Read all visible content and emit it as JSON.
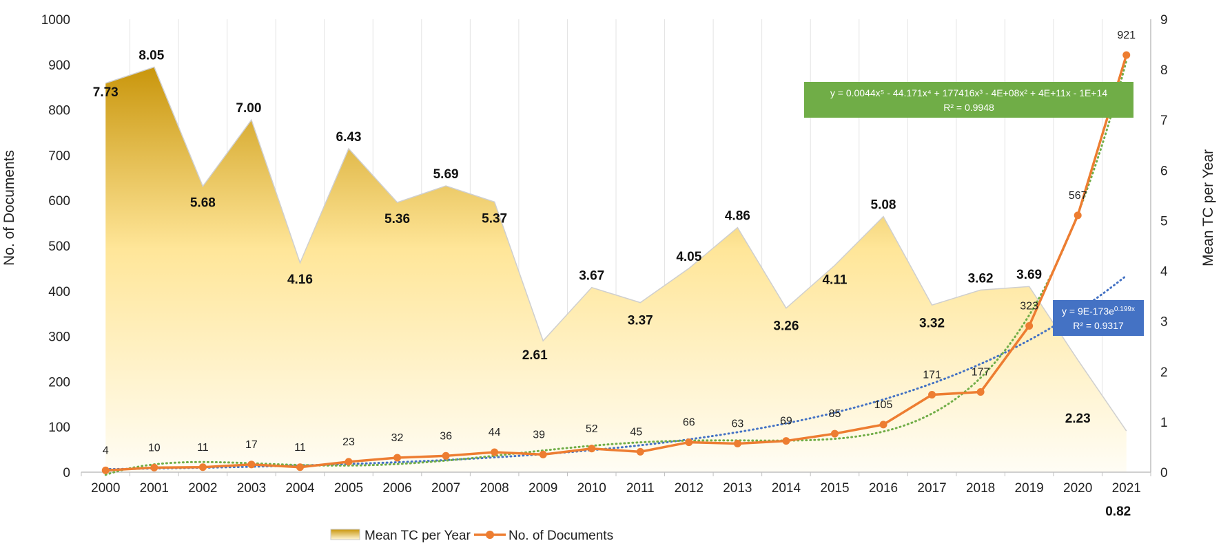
{
  "chart_data": {
    "type": "area+line",
    "categories": [
      "2000",
      "2001",
      "2002",
      "2003",
      "2004",
      "2005",
      "2006",
      "2007",
      "2008",
      "2009",
      "2010",
      "2011",
      "2012",
      "2013",
      "2014",
      "2015",
      "2016",
      "2017",
      "2018",
      "2019",
      "2020",
      "2021"
    ],
    "series": [
      {
        "name": "Mean TC per Year",
        "type": "area",
        "axis": "right",
        "values": [
          7.73,
          8.05,
          5.68,
          7.0,
          4.16,
          6.43,
          5.36,
          5.69,
          5.37,
          2.61,
          3.67,
          3.37,
          4.05,
          4.86,
          3.26,
          4.11,
          5.08,
          3.32,
          3.62,
          3.69,
          2.23,
          0.82
        ],
        "labels": [
          "7.73",
          "8.05",
          "5.68",
          "7.00",
          "4.16",
          "6.43",
          "5.36",
          "5.69",
          "5.37",
          "2.61",
          "3.67",
          "3.37",
          "4.05",
          "4.86",
          "3.26",
          "4.11",
          "5.08",
          "3.32",
          "3.62",
          "3.69",
          "2.23",
          "0.82"
        ]
      },
      {
        "name": "No. of Documents",
        "type": "line",
        "axis": "left",
        "color": "#ED7D31",
        "values": [
          4,
          10,
          11,
          17,
          11,
          23,
          32,
          36,
          44,
          39,
          52,
          45,
          66,
          63,
          69,
          85,
          105,
          171,
          177,
          323,
          567,
          921
        ]
      }
    ],
    "trendlines": [
      {
        "type": "polynomial",
        "order": 5,
        "color": "#70AD47",
        "equation": "y = 0.0044x⁵ - 44.171x⁴ + 177416x³ - 4E+08x² + 4E+11x - 1E+14",
        "r2": "R² = 0.9948"
      },
      {
        "type": "exponential",
        "color": "#4472C4",
        "equation": "y = 9E-173e",
        "exponent": "0.199x",
        "r2": "R² = 0.9317"
      }
    ],
    "ylabel": "No. of Documents",
    "y2label": "Mean TC per Year",
    "ylim": [
      0,
      1000
    ],
    "y2lim": [
      0,
      9
    ],
    "yticks": [
      "0",
      "100",
      "200",
      "300",
      "400",
      "500",
      "600",
      "700",
      "800",
      "900",
      "1000"
    ],
    "y2ticks": [
      "0",
      "1",
      "2",
      "3",
      "4",
      "5",
      "6",
      "7",
      "8",
      "9"
    ],
    "grid": "vertical",
    "legend": [
      "Mean TC per Year",
      "No. of Documents"
    ],
    "legend_position": "bottom",
    "colors": {
      "area_top": "#C9960C",
      "area_mid": "#FFE699",
      "area_bottom": "#FFFDF5",
      "line": "#ED7D31",
      "poly": "#70AD47",
      "expo": "#4472C4"
    }
  }
}
